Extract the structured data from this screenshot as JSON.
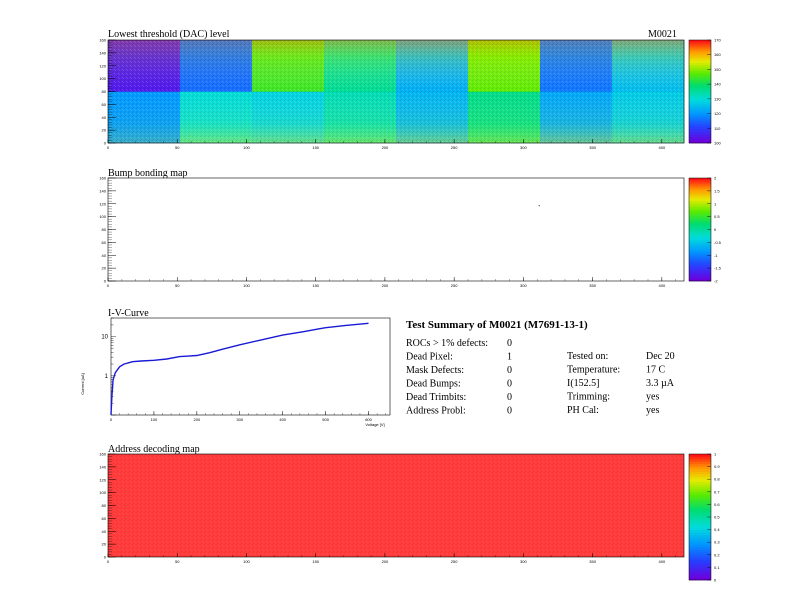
{
  "module_id": "M0021",
  "colors": {
    "address_fill": "#ff3b3b",
    "iv_line": "#1a1ad6"
  },
  "panels": {
    "threshold": {
      "title": "Lowest threshold (DAC) level",
      "x_ticks": [
        "0",
        "50",
        "100",
        "150",
        "200",
        "250",
        "300",
        "350",
        "400"
      ],
      "y_ticks": [
        "0",
        "20",
        "40",
        "60",
        "80",
        "100",
        "120",
        "140",
        "160"
      ],
      "z_ticks": [
        "100",
        "110",
        "120",
        "130",
        "140",
        "150",
        "160",
        "170"
      ]
    },
    "bump": {
      "title": "Bump bonding map",
      "x_ticks": [
        "0",
        "50",
        "100",
        "150",
        "200",
        "250",
        "300",
        "350",
        "400"
      ],
      "y_ticks": [
        "0",
        "20",
        "40",
        "60",
        "80",
        "100",
        "120",
        "140",
        "160"
      ],
      "z_ticks": [
        "-2",
        "-1.5",
        "-1",
        "-0.5",
        "0",
        "0.5",
        "1",
        "1.5",
        "2"
      ]
    },
    "address": {
      "title": "Address decoding map",
      "x_ticks": [
        "0",
        "50",
        "100",
        "150",
        "200",
        "250",
        "300",
        "350",
        "400"
      ],
      "y_ticks": [
        "0",
        "20",
        "40",
        "60",
        "80",
        "100",
        "120",
        "140",
        "160"
      ],
      "z_ticks": [
        "0",
        "0.1",
        "0.2",
        "0.3",
        "0.4",
        "0.5",
        "0.6",
        "0.7",
        "0.8",
        "0.9",
        "1"
      ]
    }
  },
  "chart_data": [
    {
      "type": "heatmap",
      "title": "Lowest threshold (DAC) level",
      "xlim": [
        0,
        416
      ],
      "ylim": [
        0,
        160
      ],
      "zlim": [
        100,
        170
      ],
      "roc_grid": {
        "cols": 8,
        "rows": 2,
        "roc_width": 52,
        "roc_height": 80
      },
      "roc_mean_values": [
        [
          120,
          130,
          128,
          133,
          124,
          137,
          122,
          127
        ],
        [
          104,
          115,
          145,
          136,
          123,
          148,
          116,
          125
        ]
      ]
    },
    {
      "type": "heatmap",
      "title": "Bump bonding map",
      "xlim": [
        0,
        416
      ],
      "ylim": [
        0,
        160
      ],
      "zlim": [
        -2,
        2
      ],
      "points": [
        {
          "x": 311,
          "y": 118
        }
      ]
    },
    {
      "type": "line",
      "title": "I-V-Curve",
      "xlabel": "Voltage [V]",
      "ylabel": "Current [uA]",
      "x_ticks": [
        "0",
        "100",
        "200",
        "300",
        "400",
        "500",
        "600"
      ],
      "y_ticks": [
        "1",
        "10"
      ],
      "xlim": [
        0,
        650
      ],
      "ylim": [
        0.1,
        30
      ],
      "y_scale": "log",
      "series": [
        {
          "x": [
            0,
            2,
            5,
            10,
            20,
            30,
            50,
            70,
            100,
            130,
            160,
            180,
            200,
            230,
            260,
            300,
            350,
            400,
            450,
            480,
            500,
            550,
            600
          ],
          "y": [
            0.1,
            0.3,
            0.8,
            1.2,
            1.7,
            2.0,
            2.3,
            2.4,
            2.5,
            2.7,
            3.1,
            3.2,
            3.3,
            3.9,
            4.8,
            6.2,
            8.3,
            11.0,
            13.5,
            15.5,
            17.0,
            19.5,
            22.0
          ]
        }
      ]
    },
    {
      "type": "heatmap",
      "title": "Address decoding map",
      "xlim": [
        0,
        416
      ],
      "ylim": [
        0,
        160
      ],
      "zlim": [
        0,
        1
      ],
      "uniform_value": 1
    }
  ],
  "summary": {
    "title": "Test Summary of M0021 (M7691-13-1)",
    "left_rows": [
      {
        "label": "ROCs > 1% defects:",
        "value": "0"
      },
      {
        "label": "Dead Pixel:",
        "value": "1"
      },
      {
        "label": "Mask Defects:",
        "value": "0"
      },
      {
        "label": "Dead Bumps:",
        "value": "0"
      },
      {
        "label": "Dead Trimbits:",
        "value": "0"
      },
      {
        "label": "Address Probl:",
        "value": "0"
      }
    ],
    "right_rows": [
      {
        "label": "Tested on:",
        "value": "Dec 20"
      },
      {
        "label": "Temperature:",
        "value": "17 C"
      },
      {
        "label": "I(152.5]",
        "value": "3.3 µA"
      },
      {
        "label": "Trimming:",
        "value": "yes"
      },
      {
        "label": "PH Cal:",
        "value": "yes"
      }
    ]
  }
}
